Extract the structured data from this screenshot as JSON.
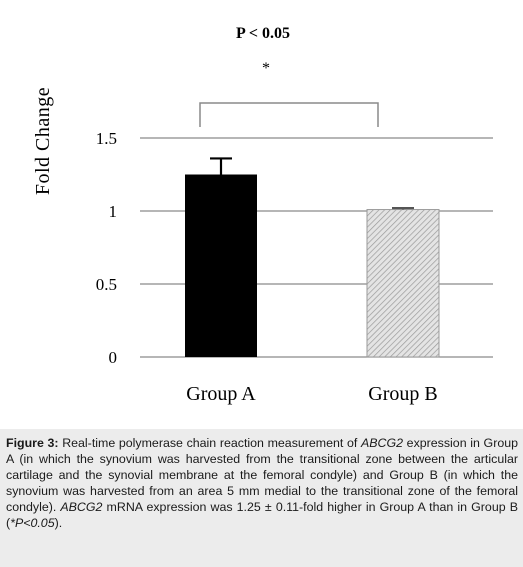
{
  "chart_data": {
    "type": "bar",
    "categories": [
      "Group A",
      "Group B"
    ],
    "values": [
      1.25,
      1.01
    ],
    "errors": [
      0.11,
      0.01
    ],
    "title": "",
    "xlabel": "",
    "ylabel": "Fold Change",
    "ylim": [
      0,
      1.5
    ],
    "yticks": [
      0,
      0.5,
      1,
      1.5
    ],
    "ytick_labels": [
      "0",
      "0.5",
      "1",
      "1.5"
    ],
    "grid": true,
    "bar_fills": [
      "#000000",
      "hatched-gray"
    ],
    "significance": {
      "label": "P < 0.05",
      "marker": "*"
    }
  },
  "caption": {
    "figure_label": "Figure 3:",
    "seg1": " Real-time polymerase chain reaction measurement of ",
    "gene1": "ABCG2",
    "seg2": " expression in Group A (in which the synovium was harvested from the transitional zone between the articular cartilage and the synovial membrane at the femoral condyle) and Group B (in which the synovium was harvested from an area 5 mm medial to the transitional zone of the femoral condyle). ",
    "gene2": "ABCG2",
    "seg3": " mRNA expression was 1.25 ± 0.11-fold higher in Group A than in Group B (",
    "pnote": "*P<0.05",
    "seg4": ")."
  },
  "colors": {
    "bar_a": "#000000",
    "bar_b": "#d0d0d0",
    "caption_bg": "#ececec"
  }
}
